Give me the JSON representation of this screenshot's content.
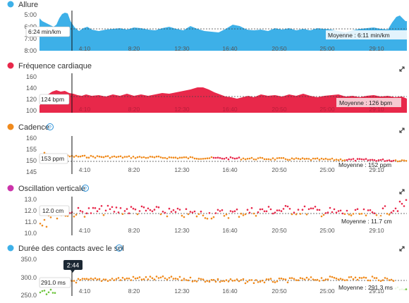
{
  "colors": {
    "pace": "#3db0e8",
    "heart": "#e8284a",
    "orange": "#f08a1c",
    "red": "#e8284a",
    "green": "#6cc43a",
    "axis_text": "#555555",
    "help": "#2a90d8"
  },
  "cursor": {
    "time": "2:44"
  },
  "panels": [
    {
      "title": "Allure",
      "dot_color": "#3db0e8",
      "has_help": false,
      "has_expand": false,
      "yticks": [
        "5:00",
        "6:00",
        "7:00",
        "8:00"
      ],
      "marker": "6:24 min/km",
      "average": "Moyenne : 6:11 min/km",
      "xticks": [
        "4:10",
        "8:20",
        "12:30",
        "16:40",
        "20:50",
        "25:00",
        "29:10"
      ]
    },
    {
      "title": "Fréquence cardiaque",
      "dot_color": "#e8284a",
      "has_help": false,
      "has_expand": true,
      "yticks": [
        "160",
        "140",
        "120",
        "100"
      ],
      "marker": "124 bpm",
      "average": "Moyenne : 126 bpm",
      "xticks": [
        "4:10",
        "8:20",
        "12:30",
        "16:40",
        "20:50",
        "25:00",
        "29:10"
      ]
    },
    {
      "title": "Cadence",
      "dot_color": "#f08a1c",
      "has_help": true,
      "has_expand": true,
      "yticks": [
        "160",
        "155",
        "150",
        "145"
      ],
      "marker": "153 ppm",
      "average": "Moyenne : 152 ppm",
      "xticks": [
        "4:10",
        "8:20",
        "12:30",
        "16:40",
        "20:50",
        "25:00",
        "29:10"
      ]
    },
    {
      "title": "Oscillation verticale",
      "dot_color": "#cc33aa",
      "has_help": true,
      "has_expand": true,
      "yticks": [
        "13.0",
        "12.0",
        "11.0",
        "10.0"
      ],
      "marker": "12.0 cm",
      "average": "Moyenne : 11.7 cm",
      "xticks": [
        "4:10",
        "8:20",
        "12:30",
        "16:40",
        "20:50",
        "25:00",
        "29:10"
      ]
    },
    {
      "title": "Durée des contacts avec le sol",
      "dot_color": "#3db0e8",
      "has_help": true,
      "has_expand": true,
      "yticks": [
        "350.0",
        "300.0",
        "250.0"
      ],
      "marker": "291.0 ms",
      "average": "Moyenne : 291.3 ms",
      "xticks": [
        "4:10",
        "8:20",
        "12:30",
        "16:40",
        "20:50",
        "25:00",
        "29:10"
      ]
    }
  ]
}
